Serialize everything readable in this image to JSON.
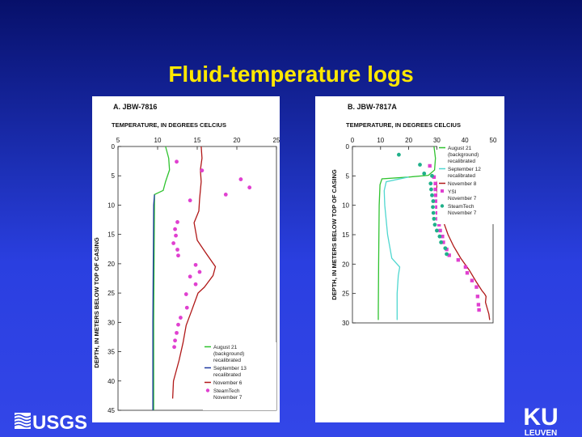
{
  "slide": {
    "title": "Fluid-temperature logs",
    "logo_left": "USGS",
    "logo_right_top": "KU",
    "logo_right_bottom": "LEUVEN"
  },
  "colors": {
    "august": "#2fc32f",
    "september": "#1f3aa0",
    "september_b": "#4fd7d0",
    "november": "#b01818",
    "ysi": "#e040d0",
    "steamtech": "#e040d0",
    "steamtech_b": "#20b08a"
  },
  "chart_data": [
    {
      "type": "line",
      "panel_label": "A.  JBW-7816",
      "xlabel": "TEMPERATURE, IN DEGREES CELCIUS",
      "ylabel": "DEPTH, IN METERS BELOW TOP OF CASING",
      "xlim": [
        5,
        25
      ],
      "ylim": [
        0,
        45
      ],
      "xticks": [
        "5",
        "10",
        "15",
        "20",
        "25"
      ],
      "yticks": [
        "0",
        "5",
        "10",
        "15",
        "20",
        "25",
        "30",
        "35",
        "40",
        "45"
      ],
      "legend_position": "bottom-right",
      "series": [
        {
          "name": "August 21 (background) recalibrated",
          "legend_lines": [
            "August 21",
            "(background)",
            "recalibrated"
          ],
          "kind": "line",
          "color_key": "august",
          "points": [
            [
              11.0,
              0
            ],
            [
              11.4,
              2
            ],
            [
              11.5,
              4
            ],
            [
              11.0,
              6
            ],
            [
              10.7,
              7.5
            ],
            [
              9.6,
              8.2
            ],
            [
              9.6,
              10
            ],
            [
              9.55,
              20
            ],
            [
              9.5,
              30
            ],
            [
              9.5,
              40
            ],
            [
              9.5,
              45
            ]
          ]
        },
        {
          "name": "September 13 recalibrated",
          "legend_lines": [
            "September 13",
            "recalibrated"
          ],
          "kind": "line",
          "color_key": "september",
          "points": [
            [
              9.6,
              8.2
            ],
            [
              9.5,
              10
            ],
            [
              9.45,
              20
            ],
            [
              9.4,
              30
            ],
            [
              9.4,
              40
            ],
            [
              9.4,
              45
            ]
          ]
        },
        {
          "name": "November 6",
          "legend_lines": [
            "November 6"
          ],
          "kind": "line",
          "color_key": "november",
          "points": [
            [
              15.5,
              0
            ],
            [
              15.6,
              2
            ],
            [
              15.4,
              4
            ],
            [
              15.5,
              6
            ],
            [
              15.3,
              9
            ],
            [
              15.2,
              11
            ],
            [
              14.6,
              13
            ],
            [
              15.0,
              16
            ],
            [
              16.0,
              18
            ],
            [
              17.3,
              20.5
            ],
            [
              17.0,
              22
            ],
            [
              15.9,
              24
            ],
            [
              15.1,
              25
            ],
            [
              14.3,
              28
            ],
            [
              13.6,
              30.5
            ],
            [
              13.2,
              33.5
            ],
            [
              12.7,
              36.5
            ],
            [
              12.0,
              40
            ],
            [
              11.9,
              43
            ]
          ]
        },
        {
          "name": "SteamTech November 7",
          "legend_lines": [
            "SteamTech",
            "November 7"
          ],
          "kind": "scatter",
          "color_key": "steamtech",
          "points": [
            [
              12.4,
              2.6
            ],
            [
              15.6,
              4.1
            ],
            [
              20.5,
              5.6
            ],
            [
              21.6,
              7.0
            ],
            [
              18.6,
              8.2
            ],
            [
              14.1,
              9.2
            ],
            [
              12.5,
              12.9
            ],
            [
              12.2,
              14.1
            ],
            [
              12.3,
              15.2
            ],
            [
              12.0,
              16.5
            ],
            [
              12.5,
              17.6
            ],
            [
              12.6,
              18.6
            ],
            [
              14.8,
              20.2
            ],
            [
              15.3,
              21.4
            ],
            [
              14.1,
              22.2
            ],
            [
              14.8,
              23.5
            ],
            [
              13.6,
              25.2
            ],
            [
              13.7,
              27.5
            ],
            [
              12.9,
              29.2
            ],
            [
              12.6,
              30.4
            ],
            [
              12.4,
              31.8
            ],
            [
              12.2,
              33.1
            ],
            [
              12.1,
              34.2
            ]
          ]
        }
      ]
    },
    {
      "type": "line",
      "panel_label": "B.  JBW-7817A",
      "xlabel": "TEMPERATURE, IN DEGREES CELCIUS",
      "ylabel": "DEPTH, IN METERS BELOW TOP OF CASING",
      "xlim": [
        0,
        50
      ],
      "ylim": [
        0,
        30
      ],
      "xticks": [
        "0",
        "10",
        "20",
        "30",
        "40",
        "50"
      ],
      "yticks": [
        "0",
        "5",
        "10",
        "15",
        "20",
        "25",
        "30"
      ],
      "legend_position": "top-right",
      "series": [
        {
          "name": "August 21 (background) recalibrated",
          "legend_lines": [
            "August 21",
            "(background)",
            "recalibrated"
          ],
          "kind": "line",
          "color_key": "august",
          "points": [
            [
              29,
              0
            ],
            [
              29.5,
              2
            ],
            [
              29.2,
              4
            ],
            [
              27,
              4.9
            ],
            [
              20,
              5.2
            ],
            [
              10.5,
              5.5
            ],
            [
              9.8,
              6.5
            ],
            [
              9.5,
              10
            ],
            [
              9.3,
              20
            ],
            [
              9.2,
              28
            ],
            [
              9.2,
              29.5
            ]
          ]
        },
        {
          "name": "September 12 recalibrated",
          "legend_lines": [
            "September 12",
            "recalibrated"
          ],
          "kind": "line",
          "color_key": "september_b",
          "points": [
            [
              20,
              5.2
            ],
            [
              12,
              6.0
            ],
            [
              11.3,
              7.5
            ],
            [
              11.5,
              10
            ],
            [
              12.5,
              15
            ],
            [
              14,
              19
            ],
            [
              16.8,
              20.5
            ],
            [
              16.3,
              22
            ],
            [
              15.9,
              25
            ],
            [
              15.9,
              29.5
            ]
          ]
        },
        {
          "name": "November 8",
          "legend_lines": [
            "November 8"
          ],
          "kind": "line",
          "color_key": "november",
          "points": [
            [
              30.5,
              5.2
            ],
            [
              30.0,
              7
            ],
            [
              30.6,
              9
            ],
            [
              31.6,
              11
            ],
            [
              32.5,
              13
            ],
            [
              34.0,
              15
            ],
            [
              36.0,
              17
            ],
            [
              38.5,
              19
            ],
            [
              41.5,
              21
            ],
            [
              44.0,
              23
            ],
            [
              46.0,
              24.5
            ],
            [
              47.0,
              25.1
            ],
            [
              47.5,
              25.5
            ],
            [
              47.3,
              26.5
            ],
            [
              48.5,
              28.5
            ],
            [
              48.8,
              29.5
            ]
          ]
        },
        {
          "name": "YSI November 7",
          "legend_lines": [
            "YSI",
            "November 7"
          ],
          "kind": "scatter",
          "color_key": "ysi",
          "points": [
            [
              27.5,
              3.3
            ],
            [
              29.0,
              5.2
            ],
            [
              29.5,
              6.3
            ],
            [
              29.5,
              7.3
            ],
            [
              29.6,
              8.3
            ],
            [
              29.8,
              9.3
            ],
            [
              30.0,
              10.3
            ],
            [
              30.2,
              11.3
            ],
            [
              30.3,
              12.3
            ],
            [
              30.8,
              13.3
            ],
            [
              31.2,
              14.3
            ],
            [
              32.0,
              15.3
            ],
            [
              32.3,
              16.3
            ],
            [
              33.5,
              17.5
            ],
            [
              34.4,
              18.5
            ],
            [
              37.6,
              19.3
            ],
            [
              40.2,
              20.5
            ],
            [
              40.8,
              21.5
            ],
            [
              42.5,
              22.8
            ],
            [
              44.1,
              23.9
            ],
            [
              44.5,
              25.5
            ],
            [
              44.8,
              26.9
            ],
            [
              45.0,
              27.8
            ]
          ]
        },
        {
          "name": "SteamTech November 7",
          "legend_lines": [
            "SteamTech",
            "November 7"
          ],
          "kind": "scatter",
          "color_key": "steamtech_b",
          "points": [
            [
              16.5,
              1.4
            ],
            [
              24.0,
              3.1
            ],
            [
              25.5,
              4.6
            ],
            [
              28.3,
              5.0
            ],
            [
              27.8,
              6.3
            ],
            [
              28.0,
              7.3
            ],
            [
              28.3,
              8.3
            ],
            [
              28.7,
              9.3
            ],
            [
              28.6,
              10.3
            ],
            [
              28.8,
              11.3
            ],
            [
              29.0,
              12.3
            ],
            [
              29.3,
              13.3
            ],
            [
              30.0,
              14.3
            ],
            [
              31.0,
              15.3
            ],
            [
              31.5,
              16.3
            ],
            [
              33.0,
              17.3
            ],
            [
              33.5,
              18.3
            ]
          ]
        }
      ]
    }
  ]
}
